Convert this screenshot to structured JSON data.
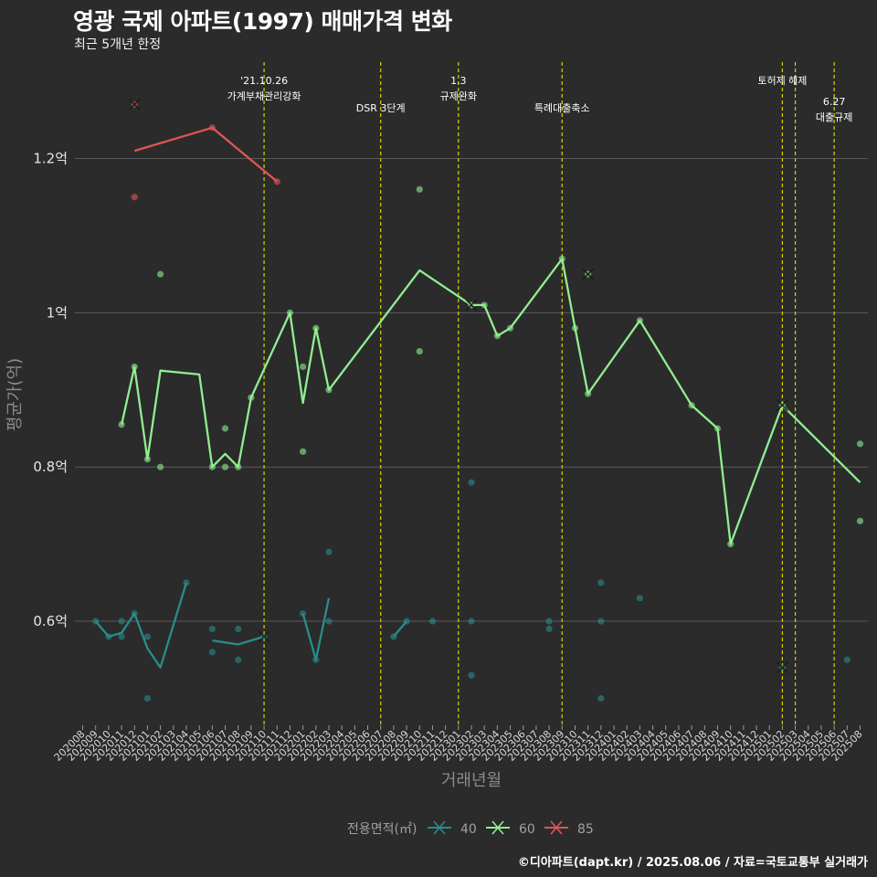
{
  "title": "영광 국제 아파트(1997) 매매가격 변화",
  "subtitle": "최근 5개년 한정",
  "caption": "©디아파트(dapt.kr) / 2025.08.06 / 자료=국토교통부 실거래가",
  "colors": {
    "background": "#2b2b2b",
    "grid": "#5a5a5a",
    "event_line": "#d4d400",
    "area_40": "#2a8c8c",
    "area_60": "#90ee90",
    "area_85": "#e05555"
  },
  "chart_data": {
    "type": "line",
    "xlabel": "거래년월",
    "ylabel": "평균가(억)",
    "ylim": [
      0.465,
      1.325
    ],
    "yticks": [
      {
        "value": 0.6,
        "label": "0.6억"
      },
      {
        "value": 0.8,
        "label": "0.8억"
      },
      {
        "value": 1.0,
        "label": "1억"
      },
      {
        "value": 1.2,
        "label": "1.2억"
      }
    ],
    "x_months": [
      "202008",
      "202009",
      "202010",
      "202011",
      "202012",
      "202101",
      "202102",
      "202103",
      "202104",
      "202105",
      "202106",
      "202107",
      "202108",
      "202109",
      "202110",
      "202111",
      "202112",
      "202201",
      "202202",
      "202203",
      "202204",
      "202205",
      "202206",
      "202207",
      "202208",
      "202209",
      "202210",
      "202211",
      "202212",
      "202301",
      "202302",
      "202303",
      "202304",
      "202305",
      "202306",
      "202307",
      "202308",
      "202309",
      "202310",
      "202311",
      "202312",
      "202401",
      "202402",
      "202403",
      "202404",
      "202405",
      "202406",
      "202407",
      "202408",
      "202409",
      "202410",
      "202411",
      "202412",
      "202501",
      "202502",
      "202503",
      "202504",
      "202505",
      "202506",
      "202507",
      "202508"
    ],
    "legend": {
      "title": "전용면적(㎡)",
      "items": [
        {
          "label": "40",
          "key": "area_40"
        },
        {
          "label": "60",
          "key": "area_60"
        },
        {
          "label": "85",
          "key": "area_85"
        }
      ]
    },
    "events": [
      {
        "month": "202110",
        "lines": [
          "'21.10.26",
          "가계부채관리강화"
        ],
        "row": 0
      },
      {
        "month": "202207",
        "lines": [
          "DSR 3단계"
        ],
        "row": 1
      },
      {
        "month": "202301",
        "lines": [
          "1.3",
          "규제완화"
        ],
        "row": 0
      },
      {
        "month": "202309",
        "lines": [
          "특례대출축소"
        ],
        "row": 1
      },
      {
        "month": "202502",
        "lines": [
          "토허제 해제"
        ],
        "row": 0
      },
      {
        "month": "202503",
        "lines": [],
        "row": 0
      },
      {
        "month": "202506",
        "lines": [
          "6.27",
          "대출규제"
        ],
        "row": 2
      }
    ],
    "series": [
      {
        "name": "40",
        "key": "area_40",
        "line": [
          {
            "x": "202009",
            "y": 0.6
          },
          {
            "x": "202010",
            "y": 0.58
          },
          {
            "x": "202011",
            "y": 0.585
          },
          {
            "x": "202012",
            "y": 0.61
          },
          {
            "x": "202101",
            "y": 0.565
          },
          {
            "x": "202102",
            "y": 0.54
          },
          {
            "x": "202104",
            "y": 0.65
          },
          null,
          {
            "x": "202106",
            "y": 0.575
          },
          {
            "x": "202108",
            "y": 0.57
          },
          {
            "x": "202110",
            "y": 0.58
          },
          null,
          {
            "x": "202201",
            "y": 0.61
          },
          {
            "x": "202202",
            "y": 0.55
          },
          {
            "x": "202203",
            "y": 0.63
          },
          null,
          {
            "x": "202208",
            "y": 0.58
          },
          {
            "x": "202209",
            "y": 0.6
          }
        ],
        "points": [
          {
            "x": "202009",
            "y": 0.6
          },
          {
            "x": "202010",
            "y": 0.58
          },
          {
            "x": "202011",
            "y": 0.6
          },
          {
            "x": "202011",
            "y": 0.58
          },
          {
            "x": "202012",
            "y": 0.61
          },
          {
            "x": "202101",
            "y": 0.58
          },
          {
            "x": "202101",
            "y": 0.5
          },
          {
            "x": "202104",
            "y": 0.65
          },
          {
            "x": "202106",
            "y": 0.59
          },
          {
            "x": "202106",
            "y": 0.56
          },
          {
            "x": "202108",
            "y": 0.59
          },
          {
            "x": "202108",
            "y": 0.55
          },
          {
            "x": "202201",
            "y": 0.61
          },
          {
            "x": "202202",
            "y": 0.55
          },
          {
            "x": "202203",
            "y": 0.69
          },
          {
            "x": "202203",
            "y": 0.6
          },
          {
            "x": "202208",
            "y": 0.58
          },
          {
            "x": "202209",
            "y": 0.6
          },
          {
            "x": "202211",
            "y": 0.6
          },
          {
            "x": "202302",
            "y": 0.78
          },
          {
            "x": "202302",
            "y": 0.6
          },
          {
            "x": "202302",
            "y": 0.53
          },
          {
            "x": "202308",
            "y": 0.6
          },
          {
            "x": "202308",
            "y": 0.59
          },
          {
            "x": "202312",
            "y": 0.65
          },
          {
            "x": "202312",
            "y": 0.6
          },
          {
            "x": "202312",
            "y": 0.5
          },
          {
            "x": "202403",
            "y": 0.63
          },
          {
            "x": "202507",
            "y": 0.55
          }
        ],
        "crosses": [
          {
            "x": "202110",
            "y": 0.58
          },
          {
            "x": "202502",
            "y": 0.54
          }
        ]
      },
      {
        "name": "60",
        "key": "area_60",
        "line": [
          {
            "x": "202011",
            "y": 0.855
          },
          {
            "x": "202012",
            "y": 0.93
          },
          {
            "x": "202101",
            "y": 0.81
          },
          {
            "x": "202102",
            "y": 0.925
          },
          {
            "x": "202105",
            "y": 0.92
          },
          {
            "x": "202106",
            "y": 0.8
          },
          {
            "x": "202107",
            "y": 0.817
          },
          {
            "x": "202108",
            "y": 0.8
          },
          {
            "x": "202109",
            "y": 0.89
          },
          {
            "x": "202112",
            "y": 1.0
          },
          {
            "x": "202201",
            "y": 0.883
          },
          {
            "x": "202202",
            "y": 0.98
          },
          {
            "x": "202203",
            "y": 0.9
          },
          {
            "x": "202210",
            "y": 1.055
          },
          {
            "x": "202302",
            "y": 1.01
          },
          {
            "x": "202303",
            "y": 1.01
          },
          {
            "x": "202304",
            "y": 0.97
          },
          {
            "x": "202305",
            "y": 0.98
          },
          {
            "x": "202309",
            "y": 1.07
          },
          {
            "x": "202310",
            "y": 0.98
          },
          {
            "x": "202311",
            "y": 0.895
          },
          {
            "x": "202403",
            "y": 0.99
          },
          {
            "x": "202407",
            "y": 0.88
          },
          {
            "x": "202409",
            "y": 0.85
          },
          {
            "x": "202410",
            "y": 0.7
          },
          {
            "x": "202502",
            "y": 0.88
          },
          {
            "x": "202508",
            "y": 0.78
          }
        ],
        "points": [
          {
            "x": "202011",
            "y": 0.855
          },
          {
            "x": "202012",
            "y": 0.93
          },
          {
            "x": "202101",
            "y": 0.81
          },
          {
            "x": "202102",
            "y": 1.05
          },
          {
            "x": "202102",
            "y": 0.8
          },
          {
            "x": "202106",
            "y": 0.8
          },
          {
            "x": "202107",
            "y": 0.85
          },
          {
            "x": "202107",
            "y": 0.8
          },
          {
            "x": "202108",
            "y": 0.8
          },
          {
            "x": "202109",
            "y": 0.89
          },
          {
            "x": "202112",
            "y": 1.0
          },
          {
            "x": "202201",
            "y": 0.93
          },
          {
            "x": "202201",
            "y": 0.82
          },
          {
            "x": "202202",
            "y": 0.98
          },
          {
            "x": "202203",
            "y": 0.9
          },
          {
            "x": "202210",
            "y": 1.16
          },
          {
            "x": "202210",
            "y": 0.95
          },
          {
            "x": "202303",
            "y": 1.01
          },
          {
            "x": "202304",
            "y": 0.97
          },
          {
            "x": "202305",
            "y": 0.98
          },
          {
            "x": "202309",
            "y": 1.07
          },
          {
            "x": "202310",
            "y": 0.98
          },
          {
            "x": "202311",
            "y": 0.895
          },
          {
            "x": "202403",
            "y": 0.99
          },
          {
            "x": "202407",
            "y": 0.88
          },
          {
            "x": "202409",
            "y": 0.85
          },
          {
            "x": "202410",
            "y": 0.7
          },
          {
            "x": "202508",
            "y": 0.83
          },
          {
            "x": "202508",
            "y": 0.73
          }
        ],
        "crosses": [
          {
            "x": "202302",
            "y": 1.01
          },
          {
            "x": "202311",
            "y": 1.05
          },
          {
            "x": "202502",
            "y": 0.88
          }
        ]
      },
      {
        "name": "85",
        "key": "area_85",
        "line": [
          {
            "x": "202012",
            "y": 1.21
          },
          {
            "x": "202106",
            "y": 1.24
          },
          {
            "x": "202111",
            "y": 1.17
          }
        ],
        "points": [
          {
            "x": "202012",
            "y": 1.15
          },
          {
            "x": "202106",
            "y": 1.24
          },
          {
            "x": "202111",
            "y": 1.17
          }
        ],
        "crosses": [
          {
            "x": "202012",
            "y": 1.27
          }
        ]
      }
    ]
  }
}
